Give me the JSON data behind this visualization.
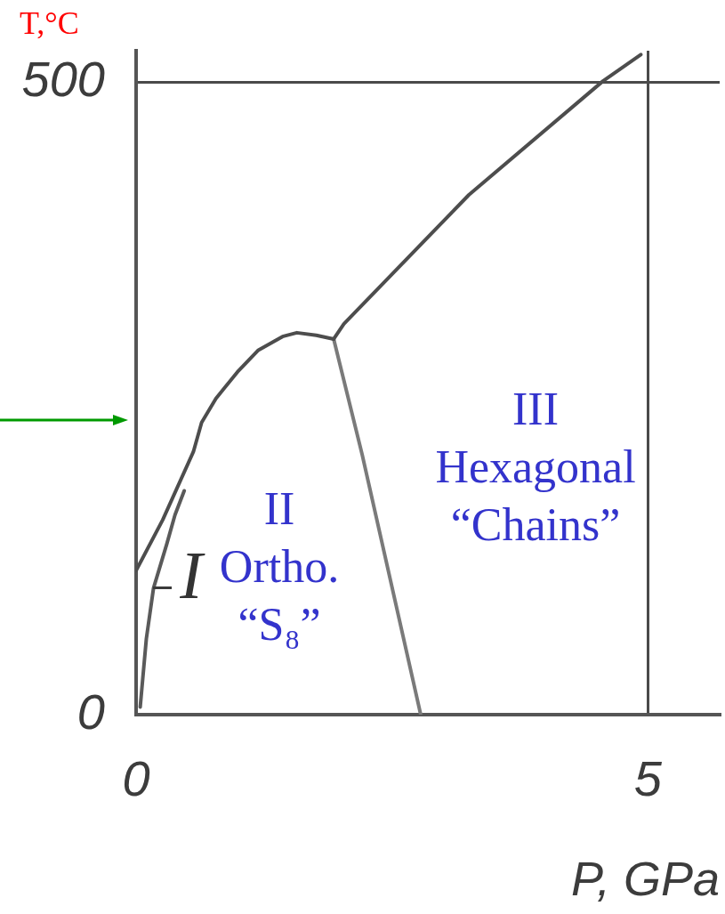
{
  "chart_data": {
    "type": "line",
    "xlabel": "P, GPa",
    "ylabel": "T,°C",
    "xlim": [
      0,
      5.7
    ],
    "ylim": [
      0,
      525
    ],
    "xticks": [
      0,
      5
    ],
    "yticks": [
      0,
      500
    ],
    "grid": true,
    "marker": "none",
    "series": [
      {
        "color": "#4d4d4d",
        "x": [
          0,
          0.26,
          0.56,
          0.64,
          0.78,
          0.99,
          1.19,
          1.43,
          1.57,
          1.76,
          1.93
        ],
        "values": [
          114,
          154,
          208,
          231,
          250,
          271,
          288,
          299,
          302,
          300,
          297
        ]
      },
      {
        "color": "#4d4d4d",
        "x": [
          1.93,
          2.03,
          3.25,
          4.56,
          4.93
        ],
        "values": [
          297,
          309,
          411,
          501,
          522
        ]
      },
      {
        "color": "#7a7a7a",
        "x": [
          1.93,
          2.21,
          2.78
        ],
        "values": [
          297,
          205,
          0
        ]
      },
      {
        "color": "#5a5a5a",
        "x": [
          0.04,
          0.1,
          0.17,
          0.3,
          0.38,
          0.47
        ],
        "values": [
          6,
          60,
          100,
          135,
          158,
          177
        ]
      }
    ],
    "annotations": [
      "II\nOrtho.\n“S₈”",
      "III\nHexagonal\n“Chains”",
      "I"
    ]
  }
}
